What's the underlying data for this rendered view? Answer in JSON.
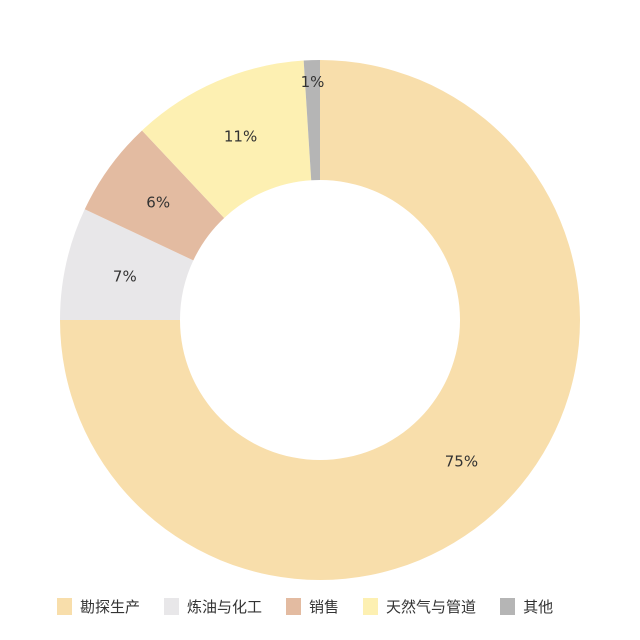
{
  "chart_data": {
    "type": "pie",
    "donut": true,
    "start": "top",
    "direction": "clockwise",
    "categories": [
      "勘探生产",
      "炼油与化工",
      "销售",
      "天然气与管道",
      "其他"
    ],
    "values": [
      75,
      7,
      6,
      11,
      1
    ],
    "labels": [
      "75%",
      "7%",
      "6%",
      "11%",
      "1%"
    ],
    "colors": [
      "#F8DEAB",
      "#E8E7E9",
      "#E3BBA1",
      "#FDF0B2",
      "#B5B5B5"
    ],
    "legend_position": "bottom"
  }
}
